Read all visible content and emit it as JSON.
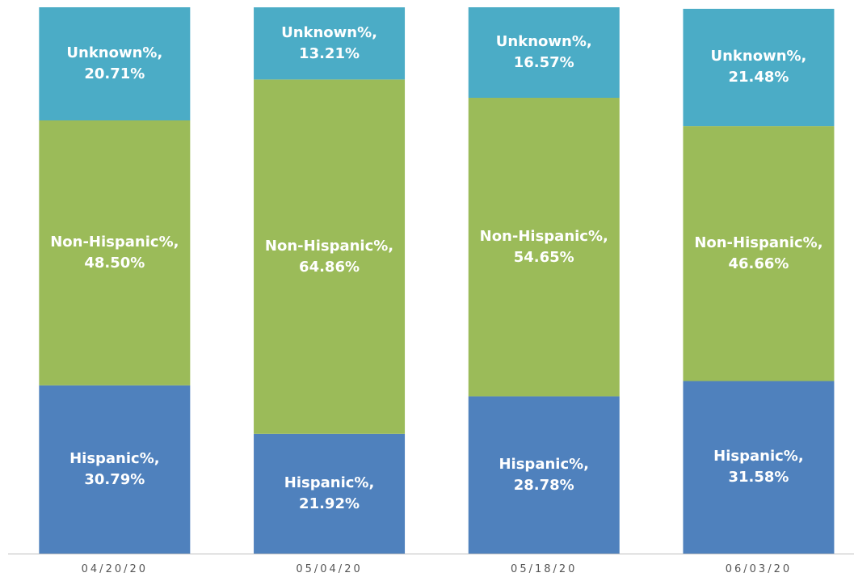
{
  "chart_data": {
    "type": "stacked_bar",
    "categories": [
      "04/20/20",
      "05/04/20",
      "05/18/20",
      "06/03/20"
    ],
    "series": [
      {
        "name": "Hispanic%",
        "color": "#4f81bd",
        "values": [
          30.79,
          21.92,
          28.78,
          31.58
        ],
        "value_labels": [
          "Hispanic%, 30.79%",
          "Hispanic%, 21.92%",
          "Hispanic%, 28.78%",
          "Hispanic%, 31.58%"
        ]
      },
      {
        "name": "Non-Hispanic%",
        "color": "#9bbb59",
        "values": [
          48.5,
          64.86,
          54.65,
          46.66
        ],
        "value_labels": [
          "Non-Hispanic%, 48.50%",
          "Non-Hispanic%, 64.86%",
          "Non-Hispanic%, 54.65%",
          "Non-Hispanic%, 46.66%"
        ]
      },
      {
        "name": "Unknown%",
        "color": "#4bacc6",
        "values": [
          20.71,
          13.21,
          16.57,
          21.48
        ],
        "value_labels": [
          "Unknown%, 20.71%",
          "Unknown%, 13.21%",
          "Unknown%, 16.57%",
          "Unknown%, 21.48%"
        ]
      }
    ],
    "ylim": [
      0,
      100
    ]
  }
}
